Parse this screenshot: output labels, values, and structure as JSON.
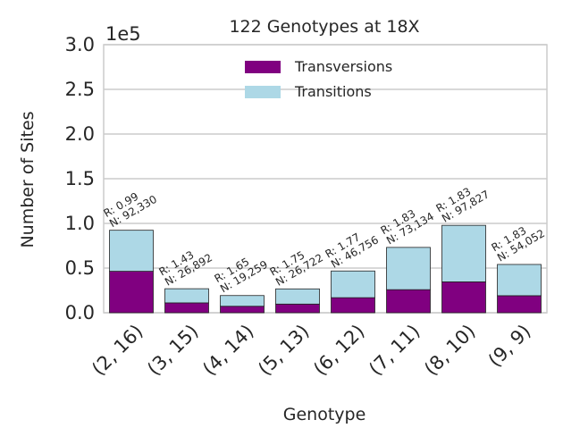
{
  "chart_data": {
    "type": "bar",
    "stacked": true,
    "title": "122 Genotypes at 18X",
    "xlabel": "Genotype",
    "ylabel": "Number of Sites",
    "y_offset_label": "1e5",
    "ylim": [
      0,
      300000
    ],
    "yticks": [
      0,
      50000,
      100000,
      150000,
      200000,
      250000,
      300000
    ],
    "ytick_labels": [
      "0.0",
      "0.5",
      "1.0",
      "1.5",
      "2.0",
      "2.5",
      "3.0"
    ],
    "grid": true,
    "legend_position": "top-center",
    "categories": [
      "(2, 16)",
      "(3, 15)",
      "(4, 14)",
      "(5, 13)",
      "(6, 12)",
      "(7, 11)",
      "(8, 10)",
      "(9, 9)"
    ],
    "series": [
      {
        "name": "Transversions",
        "color": "#800080",
        "values": [
          46398,
          11060,
          7274,
          9710,
          16874,
          25842,
          34572,
          19101
        ]
      },
      {
        "name": "Transitions",
        "color": "#add8e6",
        "values": [
          45932,
          15832,
          11985,
          17012,
          29882,
          47292,
          63255,
          34951
        ]
      }
    ],
    "annotations": [
      {
        "ratio": "R: 0.99",
        "count": "N: 92,330"
      },
      {
        "ratio": "R: 1.43",
        "count": "N: 26,892"
      },
      {
        "ratio": "R: 1.65",
        "count": "N: 19,259"
      },
      {
        "ratio": "R: 1.75",
        "count": "N: 26,722"
      },
      {
        "ratio": "R: 1.77",
        "count": "N: 46,756"
      },
      {
        "ratio": "R: 1.83",
        "count": "N: 73,134"
      },
      {
        "ratio": "R: 1.83",
        "count": "N: 97,827"
      },
      {
        "ratio": "R: 1.83",
        "count": "N: 54,052"
      }
    ]
  }
}
